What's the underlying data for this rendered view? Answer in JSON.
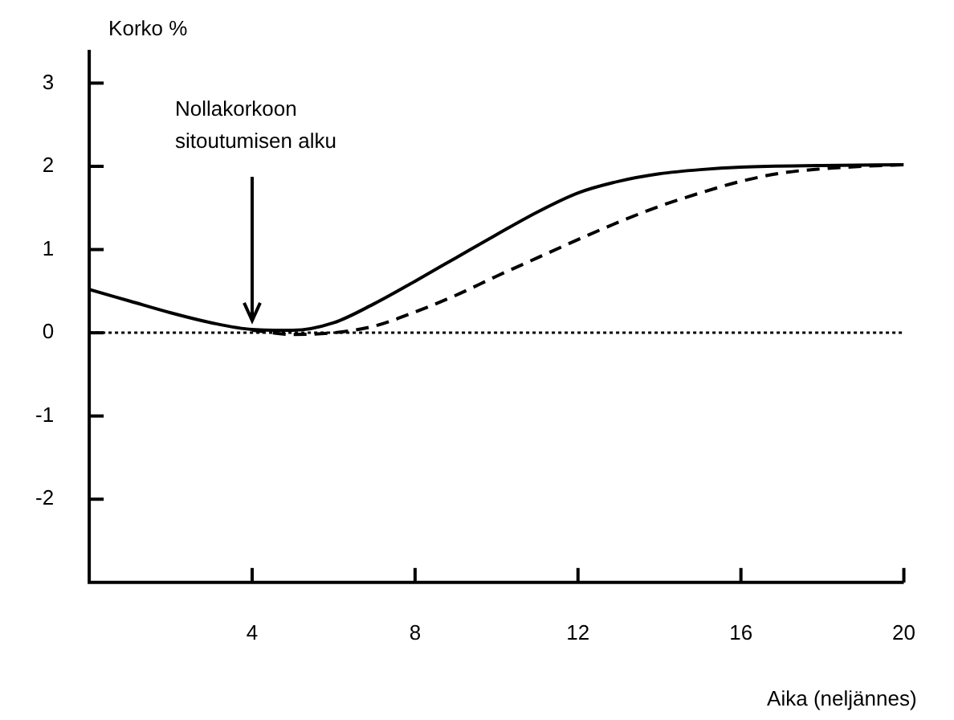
{
  "chart_data": {
    "type": "line",
    "xlabel": "Aika (neljännes)",
    "ylabel": "Korko %",
    "xlim": [
      0,
      20
    ],
    "xticks": [
      4,
      8,
      12,
      16,
      20
    ],
    "ylim": [
      -3,
      3.4
    ],
    "yticks": [
      -2,
      -1,
      0,
      1,
      2,
      3
    ],
    "grid": false,
    "legend": false,
    "marker": "none",
    "series": [
      {
        "color": "#000000",
        "line_style": "solid",
        "x": [
          0,
          1,
          2,
          3,
          4,
          5,
          6,
          7,
          8,
          9,
          10,
          11,
          12,
          13,
          14,
          15,
          16,
          18,
          20
        ],
        "values": [
          0.52,
          0.38,
          0.24,
          0.12,
          0.04,
          0.03,
          0.12,
          0.35,
          0.62,
          0.9,
          1.18,
          1.45,
          1.68,
          1.82,
          1.91,
          1.96,
          1.99,
          2.01,
          2.02
        ]
      },
      {
        "color": "#000000",
        "line_style": "dashed",
        "x": [
          4,
          5,
          6,
          7,
          8,
          9,
          10,
          11,
          12,
          13,
          14,
          15,
          16,
          17,
          18,
          19,
          20
        ],
        "values": [
          0.03,
          -0.02,
          0.0,
          0.08,
          0.25,
          0.45,
          0.68,
          0.9,
          1.12,
          1.33,
          1.52,
          1.68,
          1.82,
          1.92,
          1.97,
          2.0,
          2.02
        ]
      }
    ],
    "ref_lines": [
      {
        "axis": "y",
        "value": 0,
        "line_style": "dotted",
        "color": "#000000"
      }
    ],
    "annotations": [
      {
        "text": "Nollakorkoon sitoutumisen alku",
        "x": 4,
        "y": 0.05
      }
    ]
  }
}
